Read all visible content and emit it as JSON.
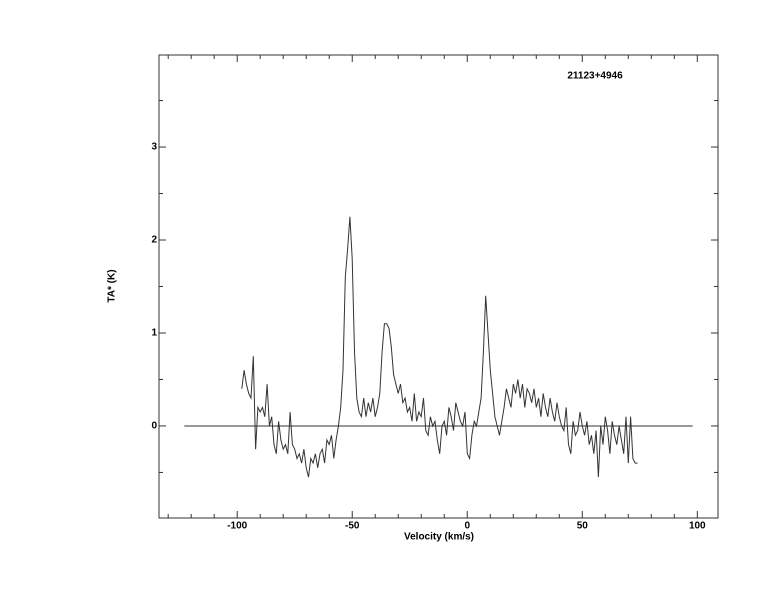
{
  "chart_data": {
    "type": "line",
    "annotation": "21123+4946",
    "xlabel": "Velocity (km/s)",
    "ylabel": "TA* (K)",
    "xlim": [
      -134,
      109
    ],
    "ylim": [
      -0.99,
      3.99
    ],
    "xticks": [
      -100,
      -50,
      0,
      50,
      100
    ],
    "yticks": [
      0,
      1,
      2,
      3
    ],
    "xminorticks": [
      -130,
      -120,
      -110,
      -90,
      -80,
      -70,
      -60,
      -40,
      -30,
      -20,
      -10,
      10,
      20,
      30,
      40,
      60,
      70,
      80,
      90
    ],
    "yminorticks": [
      -0.5,
      0.5,
      1.5,
      2.5,
      3.5
    ],
    "baseline": {
      "x": [
        -123,
        98
      ],
      "y": 0
    },
    "color": "#333333",
    "x": [
      -98,
      -97,
      -96,
      -95,
      -94,
      -93,
      -92,
      -91,
      -90,
      -89,
      -88,
      -87,
      -86,
      -85,
      -84,
      -83,
      -82,
      -81,
      -80,
      -79,
      -78,
      -77,
      -76,
      -75,
      -74,
      -73,
      -72,
      -71,
      -70,
      -69,
      -68,
      -67,
      -66,
      -65,
      -64,
      -63,
      -62,
      -61,
      -60,
      -59,
      -58,
      -57,
      -56,
      -55,
      -54,
      -53,
      -52,
      -51,
      -50,
      -49,
      -48,
      -47,
      -46,
      -45,
      -44,
      -43,
      -42,
      -41,
      -40,
      -39,
      -38,
      -37,
      -36,
      -35,
      -34,
      -33,
      -32,
      -31,
      -30,
      -29,
      -28,
      -27,
      -26,
      -25,
      -24,
      -23,
      -22,
      -21,
      -20,
      -19,
      -18,
      -17,
      -16,
      -15,
      -14,
      -13,
      -12,
      -11,
      -10,
      -9,
      -8,
      -7,
      -6,
      -5,
      -4,
      -3,
      -2,
      -1,
      0,
      1,
      2,
      3,
      4,
      5,
      6,
      7,
      8,
      9,
      10,
      11,
      12,
      13,
      14,
      15,
      16,
      17,
      18,
      19,
      20,
      21,
      22,
      23,
      24,
      25,
      26,
      27,
      28,
      29,
      30,
      31,
      32,
      33,
      34,
      35,
      36,
      37,
      38,
      39,
      40,
      41,
      42,
      43,
      44,
      45,
      46,
      47,
      48,
      49,
      50,
      51,
      52,
      53,
      54,
      55,
      56,
      57,
      58,
      59,
      60,
      61,
      62,
      63,
      64,
      65,
      66,
      67,
      68,
      69,
      70,
      71,
      72,
      73,
      74
    ],
    "values": [
      0.4,
      0.6,
      0.45,
      0.35,
      0.3,
      0.75,
      -0.25,
      0.2,
      0.15,
      0.2,
      0.1,
      0.45,
      0.0,
      0.1,
      -0.2,
      -0.3,
      0.05,
      -0.15,
      -0.25,
      -0.2,
      -0.3,
      0.15,
      -0.2,
      -0.25,
      -0.35,
      -0.3,
      -0.4,
      -0.25,
      -0.45,
      -0.55,
      -0.35,
      -0.4,
      -0.3,
      -0.45,
      -0.3,
      -0.25,
      -0.4,
      -0.15,
      -0.2,
      -0.1,
      -0.35,
      -0.15,
      0.0,
      0.2,
      0.6,
      1.6,
      1.9,
      2.25,
      1.8,
      0.8,
      0.3,
      0.15,
      0.1,
      0.3,
      0.1,
      0.25,
      0.15,
      0.3,
      0.1,
      0.2,
      0.35,
      0.8,
      1.1,
      1.1,
      1.05,
      0.85,
      0.55,
      0.45,
      0.35,
      0.45,
      0.25,
      0.3,
      0.15,
      0.2,
      0.05,
      0.35,
      0.05,
      0.15,
      0.1,
      0.3,
      -0.05,
      -0.1,
      0.1,
      0.0,
      0.05,
      -0.15,
      -0.3,
      0.0,
      0.05,
      -0.1,
      0.2,
      0.1,
      -0.05,
      0.25,
      0.15,
      0.05,
      0.0,
      0.15,
      -0.3,
      -0.35,
      -0.1,
      0.05,
      0.0,
      0.15,
      0.3,
      0.8,
      1.4,
      1.0,
      0.6,
      0.35,
      0.1,
      0.0,
      -0.1,
      0.05,
      0.2,
      0.4,
      0.3,
      0.2,
      0.45,
      0.35,
      0.5,
      0.3,
      0.45,
      0.2,
      0.4,
      0.35,
      0.25,
      0.4,
      0.2,
      0.3,
      0.1,
      0.35,
      0.2,
      0.1,
      0.3,
      0.15,
      0.05,
      0.25,
      0.1,
      0.0,
      -0.05,
      0.2,
      -0.2,
      -0.3,
      0.05,
      -0.1,
      -0.05,
      0.15,
      0.0,
      -0.1,
      0.05,
      -0.2,
      -0.1,
      -0.3,
      -0.05,
      -0.55,
      0.0,
      -0.2,
      0.1,
      -0.05,
      -0.3,
      0.05,
      -0.1,
      -0.2,
      0.0,
      -0.15,
      -0.3,
      0.1,
      -0.4,
      0.1,
      -0.35,
      -0.4,
      -0.4
    ]
  }
}
